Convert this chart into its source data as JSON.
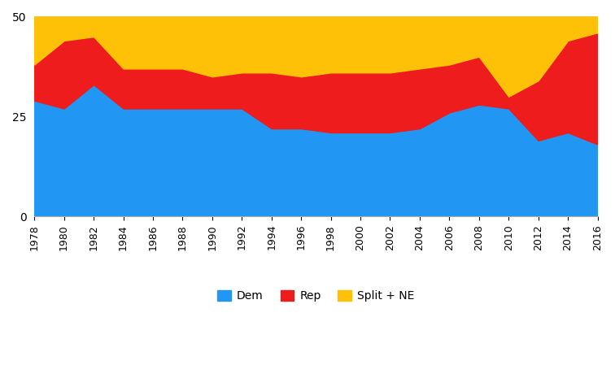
{
  "years": [
    1978,
    1980,
    1982,
    1984,
    1986,
    1988,
    1990,
    1992,
    1994,
    1996,
    1998,
    2000,
    2002,
    2004,
    2006,
    2008,
    2010,
    2012,
    2014,
    2016
  ],
  "dem": [
    29,
    27,
    33,
    27,
    27,
    27,
    27,
    27,
    22,
    22,
    21,
    21,
    21,
    22,
    26,
    28,
    27,
    19,
    21,
    18
  ],
  "rep": [
    9,
    17,
    12,
    10,
    10,
    10,
    8,
    9,
    14,
    13,
    15,
    15,
    15,
    15,
    12,
    12,
    3,
    15,
    23,
    28
  ],
  "split_ne": [
    12,
    6,
    5,
    13,
    13,
    13,
    15,
    14,
    14,
    15,
    14,
    14,
    14,
    13,
    12,
    10,
    20,
    16,
    6,
    4
  ],
  "colors": {
    "dem": "#2196F3",
    "rep": "#EE1C1C",
    "split_ne": "#FFC107"
  },
  "ylim": [
    0,
    50
  ],
  "yticks": [
    0,
    25,
    50
  ],
  "legend_labels": [
    "Dem",
    "Rep",
    "Split + NE"
  ]
}
